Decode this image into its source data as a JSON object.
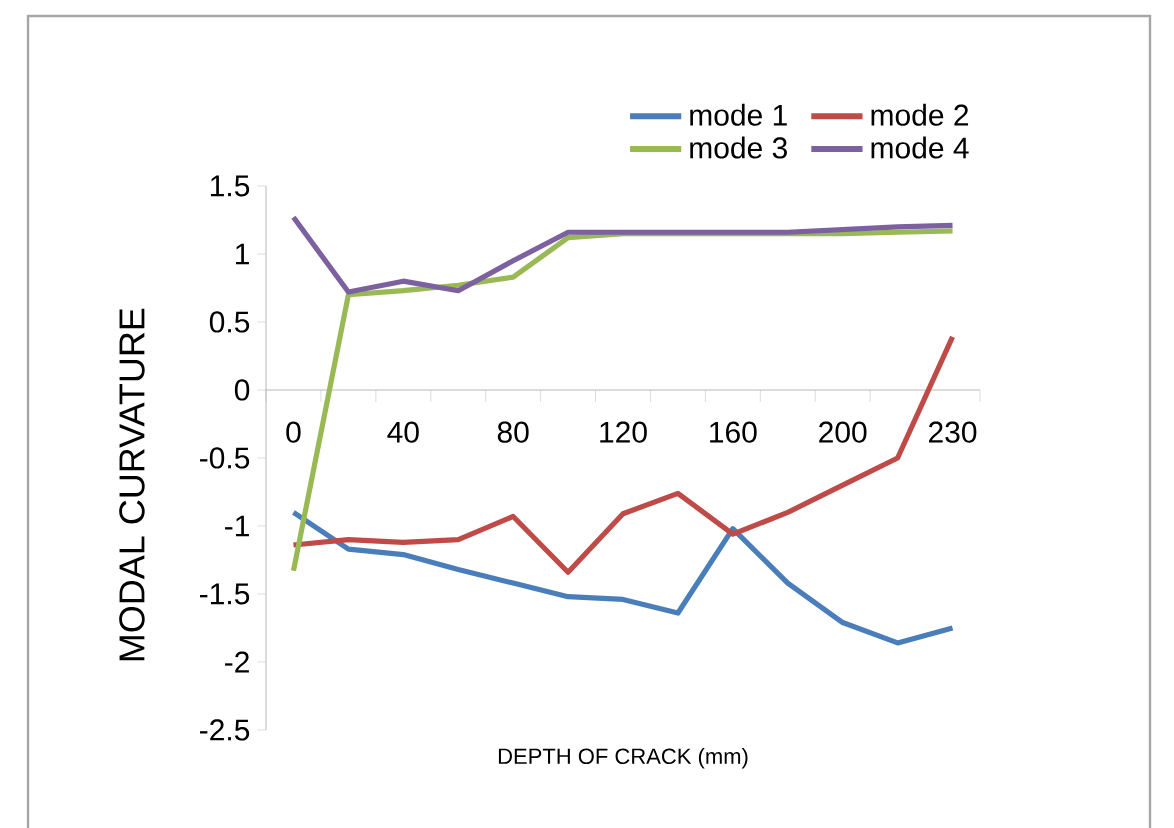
{
  "chart_data": {
    "type": "line",
    "xlabel": "DEPTH OF CRACK (mm)",
    "ylabel": "MODAL CURVATURE",
    "categories": [
      "0",
      null,
      "40",
      null,
      "80",
      null,
      "120",
      null,
      "160",
      null,
      "200",
      null,
      "230"
    ],
    "series": [
      {
        "name": "mode 1",
        "color": "#4a7ebb",
        "values": [
          -0.9,
          -1.17,
          -1.21,
          -1.32,
          -1.42,
          -1.52,
          -1.54,
          -1.64,
          -1.02,
          -1.42,
          -1.71,
          -1.86,
          -1.75
        ]
      },
      {
        "name": "mode 2",
        "color": "#be4b48",
        "values": [
          -1.14,
          -1.1,
          -1.12,
          -1.1,
          -0.93,
          -1.34,
          -0.91,
          -0.76,
          -1.06,
          -0.9,
          -0.7,
          -0.5,
          0.39
        ]
      },
      {
        "name": "mode 3",
        "color": "#98b954",
        "values": [
          -1.33,
          0.7,
          0.73,
          0.77,
          0.83,
          1.12,
          1.15,
          1.15,
          1.15,
          1.15,
          1.15,
          1.16,
          1.17
        ]
      },
      {
        "name": "mode 4",
        "color": "#7d60a0",
        "values": [
          1.27,
          0.72,
          0.8,
          0.73,
          0.95,
          1.16,
          1.16,
          1.16,
          1.16,
          1.16,
          1.18,
          1.2,
          1.21
        ]
      }
    ],
    "ylim": [
      -2.5,
      1.5
    ],
    "yticks": [
      -2.5,
      -2,
      -1.5,
      -1,
      -0.5,
      0,
      0.5,
      1,
      1.5
    ],
    "legend": "top right",
    "grid": false,
    "marker": "none",
    "line_style": "solid"
  }
}
